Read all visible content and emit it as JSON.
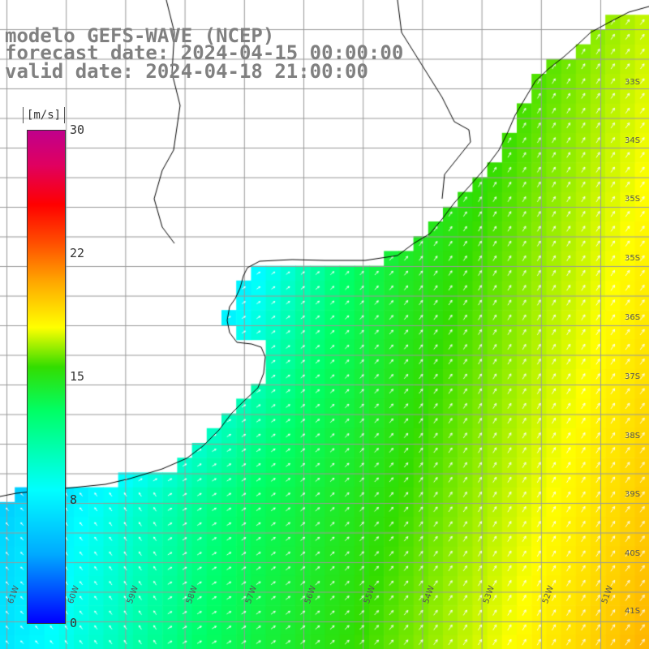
{
  "header": {
    "line1": "modelo GEFS-WAVE (NCEP)",
    "line2": "forecast date: 2024-04-15 00:00:00",
    "line3": "valid date: 2024-04-18 21:00:00"
  },
  "colorbar": {
    "unit": "[m/s]",
    "ticks": [
      "30",
      "22",
      "15",
      "8",
      "0"
    ],
    "colors": [
      "#0000ff",
      "#00aaff",
      "#00ffff",
      "#00ff66",
      "#33dd00",
      "#ffff00",
      "#ffaa00",
      "#ff5000",
      "#ff0000",
      "#e00060",
      "#c0008c"
    ]
  },
  "map": {
    "variable": "wind speed",
    "lat_labels": [
      "33S",
      "34S",
      "35S",
      "36S",
      "37S",
      "38S",
      "39S",
      "40S",
      "41S"
    ],
    "lon_labels": [
      "61W",
      "60W",
      "59W",
      "58W",
      "57W",
      "56W",
      "55W",
      "54W",
      "53W",
      "52W",
      "51W"
    ],
    "land_color": "#ffffff",
    "grid_color": "#999999",
    "coast_color": "#000000"
  }
}
